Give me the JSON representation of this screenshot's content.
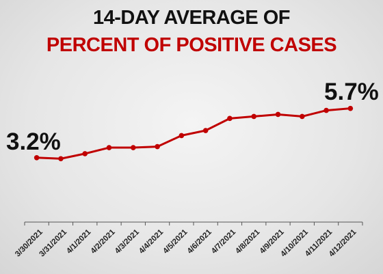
{
  "chart_data": {
    "type": "line",
    "title_line1": "14-DAY AVERAGE OF",
    "title_line2": "PERCENT OF POSITIVE CASES",
    "categories": [
      "3/30/2021",
      "3/31/2021",
      "4/1/2021",
      "4/2/2021",
      "4/3/2021",
      "4/4/2021",
      "4/5/2021",
      "4/6/2021",
      "4/7/2021",
      "4/8/2021",
      "4/9/2021",
      "4/10/2021",
      "4/11/2021",
      "4/12/2021"
    ],
    "values": [
      3.2,
      3.15,
      3.4,
      3.7,
      3.7,
      3.75,
      4.3,
      4.55,
      5.15,
      5.25,
      5.35,
      5.25,
      5.55,
      5.65
    ],
    "ylim": [
      0,
      9
    ],
    "annotations": {
      "start": "3.2%",
      "end": "5.7%"
    },
    "grid": false,
    "colors": {
      "line": "#c00000",
      "title_accent": "#c00000",
      "axis": "#555555"
    }
  }
}
